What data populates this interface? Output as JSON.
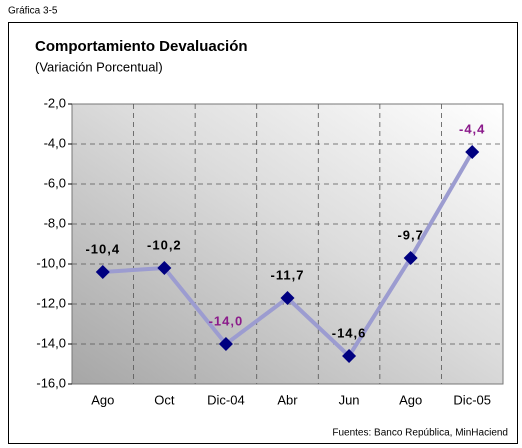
{
  "figure_label": "Gráfica 3-5",
  "chart_data": {
    "type": "line",
    "title": "Comportamiento Devaluación",
    "subtitle": "(Variación Porcentual)",
    "source": "Fuentes: Banco República, MinHaciend",
    "categories": [
      "Ago",
      "Oct",
      "Dic-04",
      "Abr",
      "Jun",
      "Ago",
      "Dic-05"
    ],
    "series": [
      {
        "name": null,
        "color": "#9c9cd0",
        "marker_color": "#000080",
        "values": [
          -10.4,
          -10.2,
          -14.0,
          -11.7,
          -14.6,
          -9.7,
          -4.4
        ],
        "value_labels": [
          "-10,4",
          "-10,2",
          "-14,0",
          "-11,7",
          "-14,6",
          "-9,7",
          "-4,4"
        ],
        "value_label_colors": [
          "#000000",
          "#000000",
          "#8b1a8b",
          "#000000",
          "#000000",
          "#000000",
          "#8b1a8b"
        ]
      }
    ],
    "ylim": [
      -16,
      -2
    ],
    "yticks": [
      {
        "value": -16,
        "label": "-16,0"
      },
      {
        "value": -14,
        "label": "-14,0"
      },
      {
        "value": -12,
        "label": "-12,0"
      },
      {
        "value": -10,
        "label": "-10,0"
      },
      {
        "value": -8,
        "label": "-8,0"
      },
      {
        "value": -6,
        "label": "-6,0"
      },
      {
        "value": -4,
        "label": "-4,0"
      },
      {
        "value": -2,
        "label": "-2,0"
      }
    ],
    "grid": true
  }
}
